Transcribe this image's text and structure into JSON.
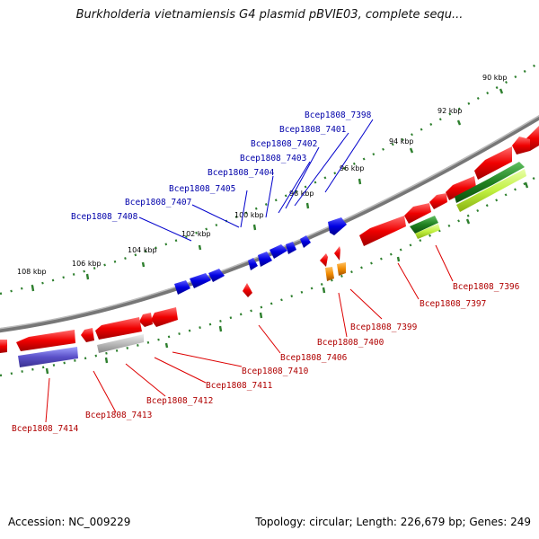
{
  "title": "Burkholderia vietnamiensis G4 plasmid pBVIE03, complete sequ...",
  "accession": "Accession: NC_009229",
  "summary": "Topology: circular; Length: 226,679 bp; Genes: 249",
  "ruler_labels": [
    "90 kbp",
    "92 kbp",
    "94 kbp",
    "96 kbp",
    "98 kbp",
    "100 kbp",
    "102 kbp",
    "104 kbp",
    "106 kbp",
    "108 kbp"
  ],
  "upper_labels": [
    "Bcep1808_7398",
    "Bcep1808_7401",
    "Bcep1808_7402",
    "Bcep1808_7403",
    "Bcep1808_7404",
    "Bcep1808_7405",
    "Bcep1808_7407",
    "Bcep1808_7408"
  ],
  "lower_labels": [
    "Bcep1808_7396",
    "Bcep1808_7397",
    "Bcep1808_7399",
    "Bcep1808_7400",
    "Bcep1808_7406",
    "Bcep1808_7410",
    "Bcep1808_7411",
    "Bcep1808_7412",
    "Bcep1808_7413",
    "Bcep1808_7414"
  ],
  "colors": {
    "forward_gene": "#0000dd",
    "reverse_gene": "#e00000",
    "backbone": "#888888",
    "ruler": "#2d7f2d",
    "upper_label": "#0000aa",
    "lower_label": "#b00000"
  }
}
